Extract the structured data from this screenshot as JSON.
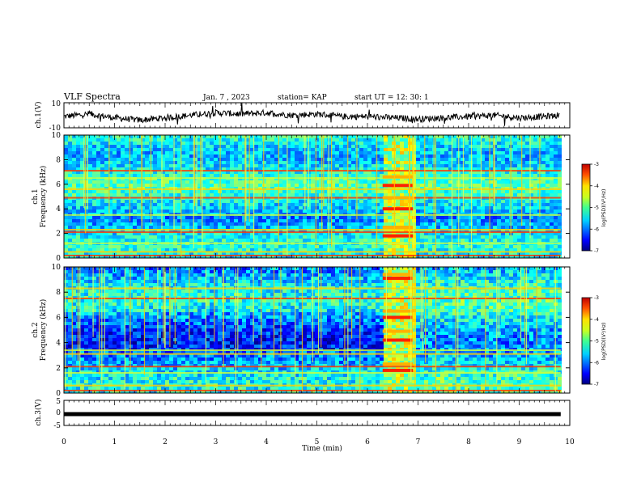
{
  "header": {
    "title": "VLF Spectra",
    "date": "Jan. 7 , 2023",
    "station": "station= KAP",
    "start": "start UT =   12: 30: 1"
  },
  "chart_data": [
    {
      "type": "line",
      "panel": "ch1-waveform",
      "ylabel": "ch.1(V)",
      "ylim": [
        -10,
        10
      ],
      "y_ticks": [
        "10",
        "-10"
      ],
      "xlim": [
        0,
        10
      ],
      "trend_x_min": [
        0,
        0.5,
        1,
        1.5,
        2,
        2.5,
        3,
        3.5,
        4,
        4.5,
        5,
        5.5,
        6,
        6.5,
        7,
        7.5,
        8,
        8.5,
        9,
        9.5,
        9.8
      ],
      "trend_y_v": [
        -1,
        1,
        -2,
        -4,
        -2,
        0,
        2,
        1,
        2,
        0,
        1,
        -1,
        -1,
        -2,
        -3,
        -2,
        -1,
        0,
        -2,
        -1,
        0
      ]
    },
    {
      "type": "heatmap",
      "panel": "ch1-spectrogram",
      "ylabel": "ch.1\nFrequency (kHz)",
      "ylabel_lines": [
        "ch.1",
        "Frequency (kHz)"
      ],
      "ylim": [
        0,
        10
      ],
      "y_ticks": [
        "0",
        "2",
        "4",
        "6",
        "8",
        "10"
      ],
      "xlim": [
        0,
        10
      ],
      "colorbar": {
        "label": "log(PSD)(V²/Hz)",
        "range": [
          -7,
          -3
        ],
        "ticks": [
          "-3",
          "-4",
          "-5",
          "-6",
          "-7"
        ]
      },
      "bands_khz": [
        0.2,
        0.5,
        1.2,
        2.1,
        2.3,
        3.5,
        4.9,
        5.6,
        6.5,
        7.1
      ],
      "burst_interval_min": [
        6.3,
        6.9
      ],
      "burst_bands_khz": [
        1.8,
        2.5,
        4.0,
        4.9,
        5.9,
        6.6
      ]
    },
    {
      "type": "heatmap",
      "panel": "ch2-spectrogram",
      "ylabel": "ch.2\nFrequency (kHz)",
      "ylabel_lines": [
        "ch.2",
        "Frequency (kHz)"
      ],
      "ylim": [
        0,
        10
      ],
      "y_ticks": [
        "0",
        "2",
        "4",
        "6",
        "8",
        "10"
      ],
      "xlim": [
        0,
        10
      ],
      "colorbar": {
        "label": "log(PSD)(V²/Hz)",
        "range": [
          -7,
          -3
        ],
        "ticks": [
          "-3",
          "-4",
          "-5",
          "-6",
          "-7"
        ]
      },
      "bands_khz": [
        0.2,
        0.6,
        1.6,
        2.1,
        3.1,
        3.4,
        7.5,
        8.3
      ],
      "burst_interval_min": [
        6.3,
        6.9
      ],
      "burst_bands_khz": [
        1.8,
        2.3,
        4.2,
        4.9,
        6.0,
        6.5,
        9.1,
        9.4
      ]
    },
    {
      "type": "line",
      "panel": "ch3-waveform",
      "ylabel": "ch.3(V)",
      "ylim": [
        -5,
        5
      ],
      "y_ticks": [
        "5",
        "0",
        "-5"
      ],
      "xlim": [
        0,
        10
      ],
      "x_ticks": [
        "0",
        "1",
        "2",
        "3",
        "4",
        "5",
        "6",
        "7",
        "8",
        "9",
        "10"
      ],
      "xlabel": "Time (min)",
      "level_v": -0.5
    }
  ]
}
